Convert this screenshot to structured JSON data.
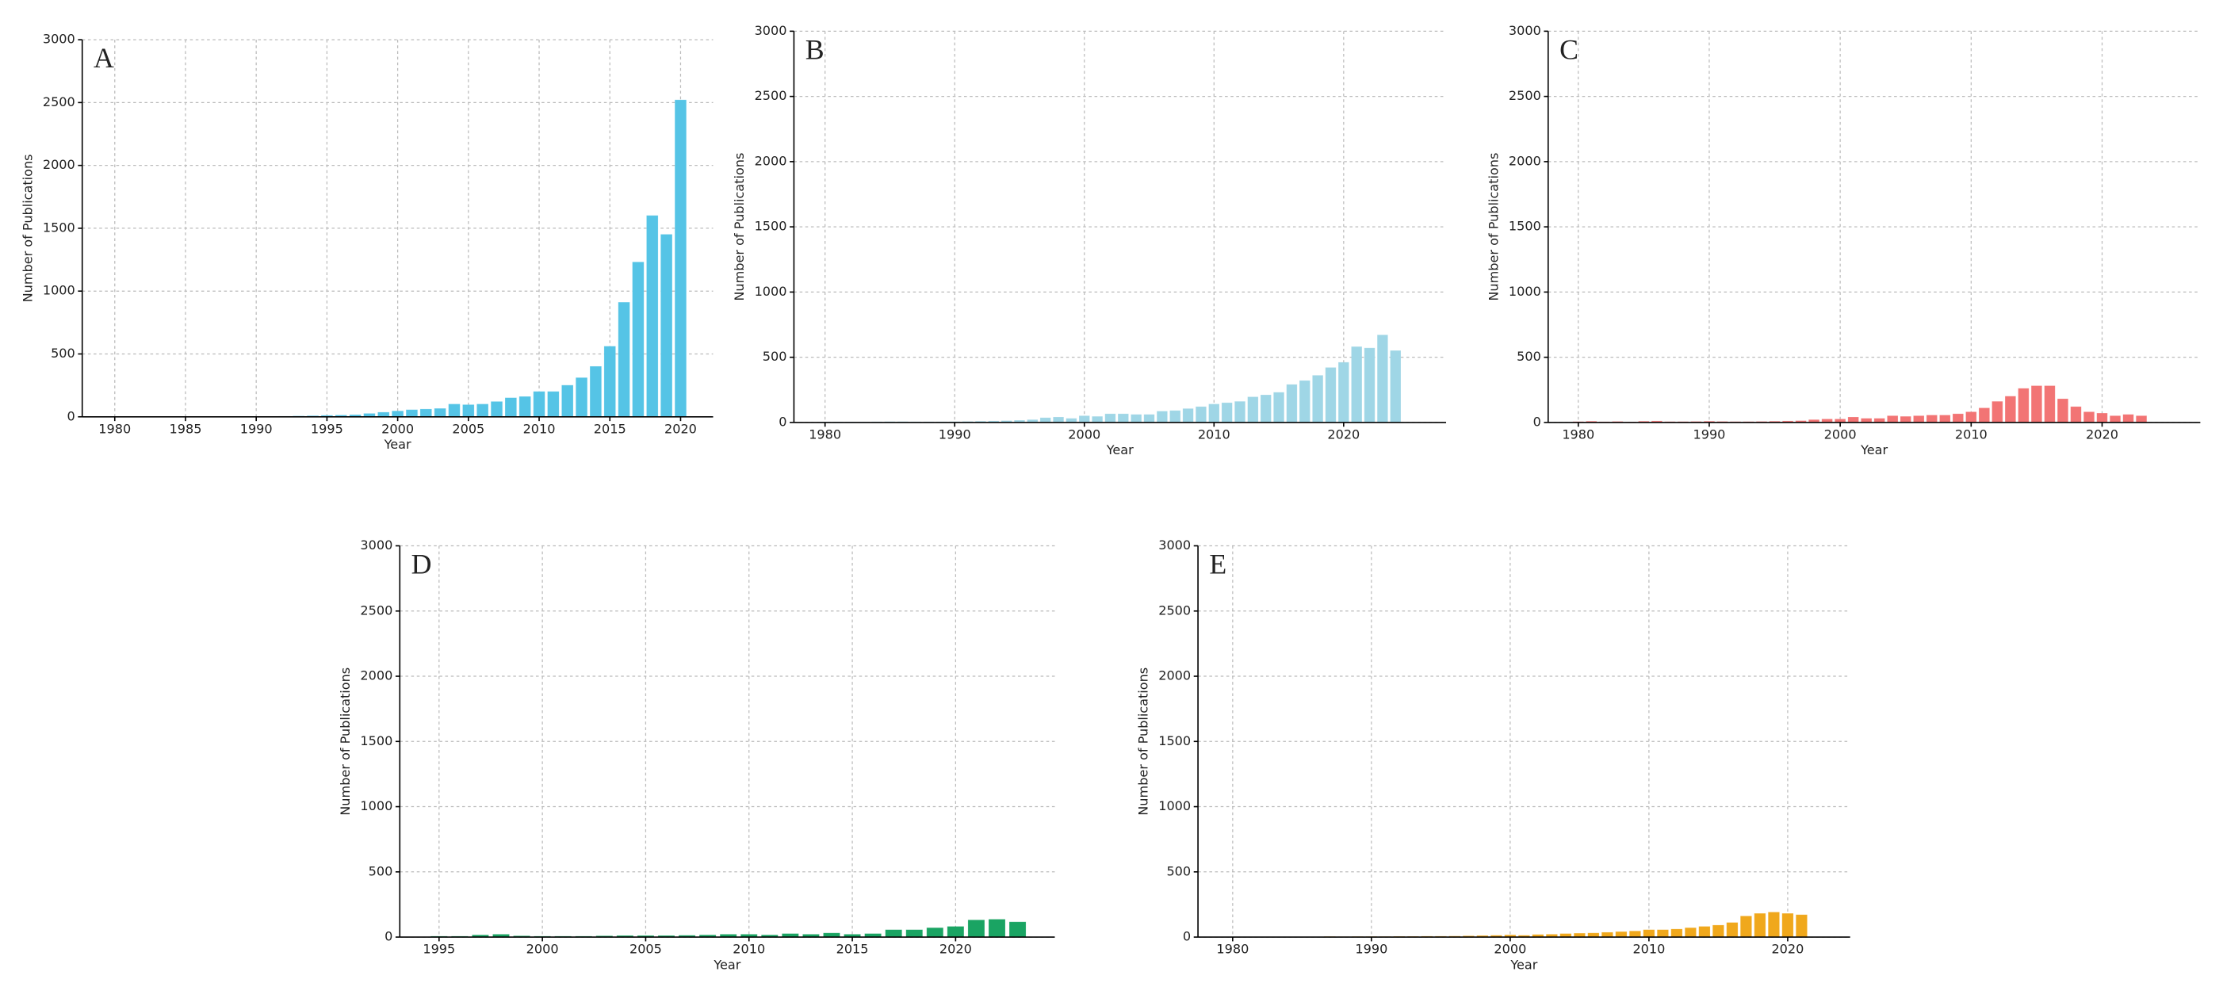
{
  "chart_data": [
    {
      "type": "bar",
      "panel_label": "A",
      "xlabel": "Year",
      "ylabel": "Number of Publications",
      "color": "#55c4e6",
      "grid": true,
      "xlim": [
        1977.7,
        2022.3
      ],
      "ylim": [
        0,
        3000
      ],
      "xticks": [
        1980,
        1985,
        1990,
        1995,
        2000,
        2005,
        2010,
        2015,
        2020
      ],
      "yticks": [
        0,
        500,
        1000,
        1500,
        2000,
        2500,
        3000
      ],
      "x": [
        1991,
        1992,
        1993,
        1994,
        1995,
        1996,
        1997,
        1998,
        1999,
        2000,
        2001,
        2002,
        2003,
        2004,
        2005,
        2006,
        2007,
        2008,
        2009,
        2010,
        2011,
        2012,
        2013,
        2014,
        2015,
        2016,
        2017,
        2018,
        2019,
        2020
      ],
      "values": [
        2,
        3,
        5,
        7,
        10,
        12,
        15,
        25,
        35,
        45,
        55,
        60,
        65,
        100,
        95,
        100,
        120,
        150,
        160,
        200,
        200,
        250,
        310,
        400,
        560,
        910,
        1230,
        1600,
        1450,
        2520
      ]
    },
    {
      "type": "bar",
      "panel_label": "B",
      "xlabel": "Year",
      "ylabel": "Number of Publications",
      "color": "#9fd6e6",
      "grid": true,
      "xlim": [
        1977.6,
        2027.9
      ],
      "ylim": [
        0,
        3000
      ],
      "xticks": [
        1980,
        1990,
        2000,
        2010,
        2020
      ],
      "yticks": [
        0,
        500,
        1000,
        1500,
        2000,
        2500,
        3000
      ],
      "x": [
        1980,
        1981,
        1982,
        1983,
        1984,
        1985,
        1986,
        1987,
        1988,
        1989,
        1990,
        1991,
        1992,
        1993,
        1994,
        1995,
        1996,
        1997,
        1998,
        1999,
        2000,
        2001,
        2002,
        2003,
        2004,
        2005,
        2006,
        2007,
        2008,
        2009,
        2010,
        2011,
        2012,
        2013,
        2014,
        2015,
        2016,
        2017,
        2018,
        2019,
        2020,
        2021,
        2022,
        2023,
        2024
      ],
      "values": [
        3,
        3,
        3,
        3,
        4,
        5,
        5,
        4,
        4,
        4,
        5,
        6,
        8,
        10,
        12,
        15,
        20,
        35,
        40,
        30,
        50,
        45,
        65,
        65,
        60,
        60,
        85,
        90,
        105,
        120,
        140,
        150,
        160,
        195,
        210,
        230,
        290,
        320,
        360,
        420,
        460,
        580,
        570,
        670,
        550
      ]
    },
    {
      "type": "bar",
      "panel_label": "C",
      "xlabel": "Year",
      "ylabel": "Number of Publications",
      "color": "#f27474",
      "grid": true,
      "xlim": [
        1977.7,
        2027.5
      ],
      "ylim": [
        0,
        3000
      ],
      "xticks": [
        1980,
        1990,
        2000,
        2010,
        2020
      ],
      "yticks": [
        0,
        500,
        1000,
        1500,
        2000,
        2500,
        3000
      ],
      "x": [
        1980,
        1981,
        1982,
        1983,
        1984,
        1985,
        1986,
        1987,
        1988,
        1989,
        1990,
        1991,
        1992,
        1993,
        1994,
        1995,
        1996,
        1997,
        1998,
        1999,
        2000,
        2001,
        2002,
        2003,
        2004,
        2005,
        2006,
        2007,
        2008,
        2009,
        2010,
        2011,
        2012,
        2013,
        2014,
        2015,
        2016,
        2017,
        2018,
        2019,
        2020,
        2021,
        2022,
        2023
      ],
      "values": [
        5,
        8,
        4,
        6,
        3,
        8,
        10,
        5,
        5,
        6,
        8,
        6,
        5,
        5,
        6,
        8,
        10,
        12,
        20,
        25,
        25,
        40,
        30,
        30,
        50,
        45,
        50,
        55,
        55,
        65,
        80,
        110,
        160,
        200,
        260,
        280,
        280,
        180,
        120,
        80,
        70,
        50,
        60,
        50
      ]
    },
    {
      "type": "bar",
      "panel_label": "D",
      "xlabel": "Year",
      "ylabel": "Number of Publications",
      "color": "#1aa463",
      "grid": true,
      "xlim": [
        1993.1,
        2024.8
      ],
      "ylim": [
        0,
        3000
      ],
      "xticks": [
        1995,
        2000,
        2005,
        2010,
        2015,
        2020
      ],
      "yticks": [
        0,
        500,
        1000,
        1500,
        2000,
        2500,
        3000
      ],
      "x": [
        1995,
        1996,
        1997,
        1998,
        1999,
        2000,
        2001,
        2002,
        2003,
        2004,
        2005,
        2006,
        2007,
        2008,
        2009,
        2010,
        2011,
        2012,
        2013,
        2014,
        2015,
        2016,
        2017,
        2018,
        2019,
        2020,
        2021,
        2022,
        2023
      ],
      "values": [
        5,
        5,
        15,
        20,
        8,
        5,
        5,
        5,
        8,
        10,
        10,
        10,
        12,
        15,
        20,
        20,
        15,
        25,
        20,
        30,
        20,
        25,
        55,
        55,
        70,
        80,
        130,
        135,
        115
      ]
    },
    {
      "type": "bar",
      "panel_label": "E",
      "xlabel": "Year",
      "ylabel": "Number of Publications",
      "color": "#f0a81c",
      "grid": true,
      "xlim": [
        1977.5,
        2024.5
      ],
      "ylim": [
        0,
        3000
      ],
      "xticks": [
        1980,
        1990,
        2000,
        2010,
        2020
      ],
      "yticks": [
        0,
        500,
        1000,
        1500,
        2000,
        2500,
        3000
      ],
      "x": [
        1987,
        1988,
        1989,
        1990,
        1991,
        1992,
        1993,
        1994,
        1995,
        1996,
        1997,
        1998,
        1999,
        2000,
        2001,
        2002,
        2003,
        2004,
        2005,
        2006,
        2007,
        2008,
        2009,
        2010,
        2011,
        2012,
        2013,
        2014,
        2015,
        2016,
        2017,
        2018,
        2019,
        2020,
        2021
      ],
      "values": [
        3,
        2,
        3,
        3,
        3,
        4,
        4,
        5,
        5,
        6,
        8,
        10,
        12,
        15,
        12,
        18,
        20,
        25,
        28,
        30,
        35,
        40,
        45,
        55,
        55,
        60,
        70,
        80,
        90,
        110,
        160,
        180,
        190,
        180,
        170
      ]
    }
  ]
}
